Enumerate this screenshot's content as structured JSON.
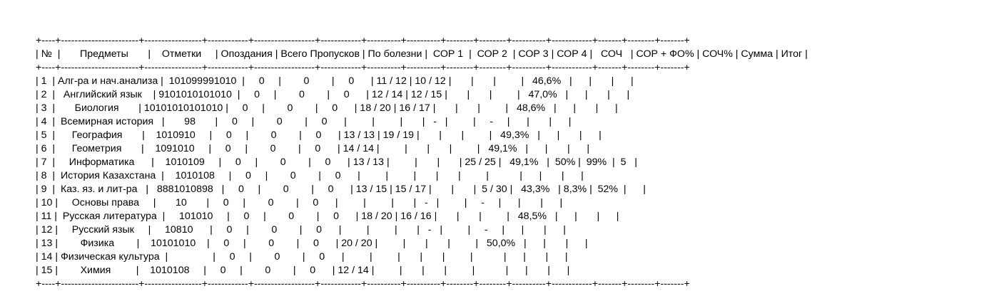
{
  "border_line": "+----+-----------------------+-----------------+------------+------------------+------------+----------+----------+--------+--------+----------+------------+-------+--------+-------+",
  "header_line": "| №  |       Предметы       |    Отметки     | Опоздания | Всего Пропусков | По болезни |  СОР 1  |  СОР 2  | СОР 3 | СОР 4 |   СОЧ   | СОР + ФО% | СОЧ% | Сумма | Итог |",
  "rows": [
    "| 1  | Алг-ра и нач.анализа |  101099991010  |     0     |        0        |     0      | 11 / 12 | 10 / 12 |       |       |         |   46,6%   |      |       |      |",
    "| 2  |   Английский язык    | 9101010101010  |     0     |        0        |     0      | 12 / 14 | 12 / 15 |       |       |         |   47,0%   |      |       |      |",
    "| 3  |       Биология       | 10101010101010 |     0     |        0        |     0      | 18 / 20 | 16 / 17 |       |       |         |   48,6%   |      |       |      |",
    "| 4  |  Всемирная история   |       98       |     0     |        0        |     0      |         |         |       |   -   |         |     -     |      |       |      |",
    "| 5  |      География       |    1010910     |     0     |        0        |     0      | 13 / 13 | 19 / 19 |       |       |         |   49,3%   |      |       |      |",
    "| 6  |      Геометрия       |    1091010     |     0     |        0        |     0      | 14 / 14 |         |       |       |         |   49,1%   |      |       |      |",
    "| 7  |     Информатика      |    1010109     |     0     |        0        |     0      | 13 / 13 |         |       |       | 25 / 25 |   49,1%   |  50% |  99%  |  5   |",
    "| 8  |  История Казахстана  |    1010108     |     0     |        0        |     0      |         |         |       |       |         |           |      |       |      |",
    "| 9  |  Каз. яз. и лит-ра   |   8881010898   |     0     |        0        |     0      | 13 / 15 | 15 / 17 |       |       |  5 / 30 |   43,3%   | 8,3% |  52%  |      |",
    "| 10 |     Основы права     |       10       |     0     |        0        |     0      |         |         |       |   -   |         |     -     |      |       |      |",
    "| 11 |  Русская литература  |     101010     |     0     |        0        |     0      | 18 / 20 | 16 / 16 |       |       |         |   48,5%   |      |       |      |",
    "| 12 |     Русский язык     |     10810      |     0     |        0        |     0      |         |         |       |   -   |         |     -     |      |       |      |",
    "| 13 |        Физика        |    10101010    |     0     |        0        |     0      | 20 / 20 |         |       |       |         |   50,0%   |      |       |      |",
    "| 14 | Физическая культура  |                |     0     |        0        |     0      |         |         |       |       |         |           |      |       |      |",
    "| 15 |        Химия         |    1010108     |     0     |        0        |     0      | 12 / 14 |         |       |       |         |           |      |       |      |"
  ]
}
